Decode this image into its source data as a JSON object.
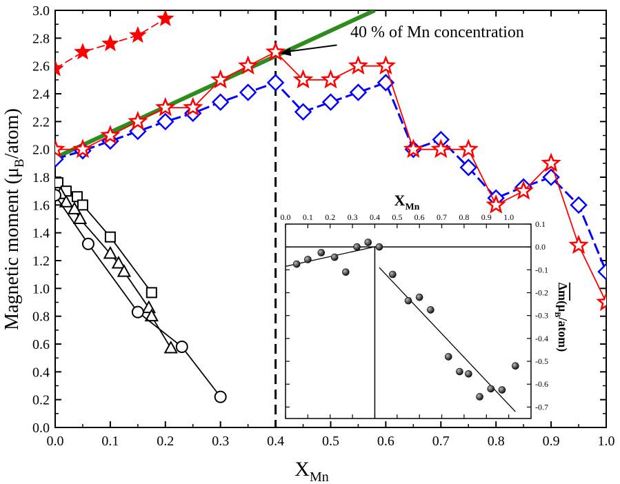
{
  "chart_data": {
    "type": "line",
    "xlabel": "X",
    "xlabel_sub": "Mn",
    "ylabel": "Magnetic moment (μ",
    "ylabel_sub": "B",
    "ylabel_end": "/atom)",
    "xlim": [
      0.0,
      1.0
    ],
    "ylim": [
      0.0,
      3.0
    ],
    "xticks": [
      0.0,
      0.1,
      0.2,
      0.3,
      0.4,
      0.5,
      0.6,
      0.7,
      0.8,
      0.9,
      1.0
    ],
    "xtick_labels": [
      "0.0",
      "0.1",
      "0.2",
      "0.3",
      "0.4",
      "0.5",
      "0.6",
      "0.7",
      "0.8",
      "0.9",
      "1.0"
    ],
    "yticks": [
      0.0,
      0.2,
      0.4,
      0.6,
      0.8,
      1.0,
      1.2,
      1.4,
      1.6,
      1.8,
      2.0,
      2.2,
      2.4,
      2.6,
      2.8,
      3.0
    ],
    "ytick_labels": [
      "0.0",
      "0.2",
      "0.4",
      "0.6",
      "0.8",
      "1.0",
      "1.2",
      "1.4",
      "1.6",
      "1.8",
      "2.0",
      "2.2",
      "2.4",
      "2.6",
      "2.8",
      "3.0"
    ],
    "vline_x": 0.4,
    "annotation": {
      "text": "40 % of Mn concentration",
      "arrow_to": [
        0.4,
        2.68
      ],
      "arrow_from": [
        0.53,
        2.8
      ]
    },
    "green_line": {
      "name": "linear trend",
      "color": "#2e8b1e",
      "x": [
        0.0,
        0.58
      ],
      "y": [
        1.94,
        3.0
      ]
    },
    "series": [
      {
        "name": "calc-diamonds",
        "color": "#0000ff",
        "marker": "diamond",
        "dash": true,
        "x": [
          0.0,
          0.05,
          0.1,
          0.15,
          0.2,
          0.25,
          0.3,
          0.35,
          0.4,
          0.45,
          0.5,
          0.55,
          0.6,
          0.65,
          0.7,
          0.75,
          0.8,
          0.85,
          0.9,
          0.95,
          1.0
        ],
        "y": [
          1.93,
          1.99,
          2.06,
          2.13,
          2.2,
          2.26,
          2.34,
          2.41,
          2.48,
          2.27,
          2.34,
          2.41,
          2.48,
          2.0,
          2.07,
          1.87,
          1.65,
          1.73,
          1.8,
          1.6,
          1.12
        ]
      },
      {
        "name": "calc-open-stars",
        "color": "#ff0000",
        "marker": "star-open",
        "dash": false,
        "x": [
          0.0,
          0.05,
          0.1,
          0.15,
          0.2,
          0.25,
          0.3,
          0.35,
          0.4,
          0.45,
          0.5,
          0.55,
          0.6,
          0.65,
          0.7,
          0.75,
          0.8,
          0.85,
          0.9,
          0.95,
          1.0
        ],
        "y": [
          2.0,
          2.0,
          2.1,
          2.2,
          2.3,
          2.3,
          2.5,
          2.6,
          2.7,
          2.5,
          2.5,
          2.6,
          2.6,
          2.0,
          2.0,
          2.0,
          1.6,
          1.7,
          1.9,
          1.31,
          0.9
        ]
      },
      {
        "name": "filled-stars",
        "color": "#ff0000",
        "marker": "star-filled",
        "dash": true,
        "x": [
          0.0,
          0.05,
          0.1,
          0.15,
          0.2
        ],
        "y": [
          2.58,
          2.7,
          2.76,
          2.82,
          2.94
        ]
      },
      {
        "name": "squares",
        "color": "#000000",
        "marker": "square",
        "dash": false,
        "x": [
          0.005,
          0.02,
          0.04,
          0.05,
          0.1,
          0.175
        ],
        "y": [
          1.76,
          1.7,
          1.66,
          1.6,
          1.37,
          0.97
        ]
      },
      {
        "name": "triangles",
        "color": "#000000",
        "marker": "triangle",
        "dash": false,
        "x": [
          0.01,
          0.02,
          0.035,
          0.045,
          0.1,
          0.115,
          0.125,
          0.17,
          0.175,
          0.21
        ],
        "y": [
          1.68,
          1.62,
          1.57,
          1.5,
          1.25,
          1.18,
          1.12,
          0.86,
          0.8,
          0.57
        ]
      },
      {
        "name": "circles",
        "color": "#000000",
        "marker": "circle",
        "dash": false,
        "x": [
          0.0,
          0.06,
          0.15,
          0.23,
          0.3
        ],
        "y": [
          1.67,
          1.32,
          0.83,
          0.58,
          0.22
        ]
      }
    ],
    "inset": {
      "type": "scatter",
      "xlabel": "X",
      "xlabel_sub": "Mn",
      "ylabel": "(μ",
      "ylabel_sub": "B",
      "ylabel_end": "/atom)",
      "ylabel_symbol": "Δm",
      "xlim": [
        0.0,
        1.1
      ],
      "ylim": [
        -0.75,
        0.1
      ],
      "xticks": [
        0.0,
        0.1,
        0.2,
        0.3,
        0.4,
        0.5,
        0.6,
        0.7,
        0.8,
        0.9,
        1.0
      ],
      "xtick_labels": [
        "0.0",
        "0.1",
        "0.2",
        "0.3",
        "0.4",
        "0.5",
        "0.6",
        "0.7",
        "0.8",
        "0.9",
        "1.0"
      ],
      "yticks": [
        0.1,
        0.0,
        -0.1,
        -0.2,
        -0.3,
        -0.4,
        -0.5,
        -0.6,
        -0.7
      ],
      "ytick_labels": [
        "0.1",
        "0.0",
        "-0.1",
        "-0.2",
        "-0.3",
        "-0.4",
        "-0.5",
        "-0.6",
        "-0.7"
      ],
      "vline_x": 0.4,
      "hline_y": 0.0,
      "fit_left": {
        "x": [
          0.0,
          0.42
        ],
        "y": [
          -0.085,
          0.005
        ]
      },
      "fit_right": {
        "x": [
          0.42,
          1.03
        ],
        "y": [
          -0.09,
          -0.72
        ]
      },
      "points": {
        "x": [
          0.05,
          0.1,
          0.16,
          0.22,
          0.27,
          0.32,
          0.37,
          0.42,
          0.48,
          0.55,
          0.6,
          0.65,
          0.73,
          0.78,
          0.82,
          0.87,
          0.92,
          0.97,
          1.03
        ],
        "y": [
          -0.075,
          -0.055,
          -0.025,
          -0.045,
          -0.11,
          0.0,
          0.02,
          0.0,
          -0.12,
          -0.235,
          -0.22,
          -0.275,
          -0.48,
          -0.545,
          -0.555,
          -0.655,
          -0.62,
          -0.625,
          -0.52
        ]
      }
    }
  }
}
